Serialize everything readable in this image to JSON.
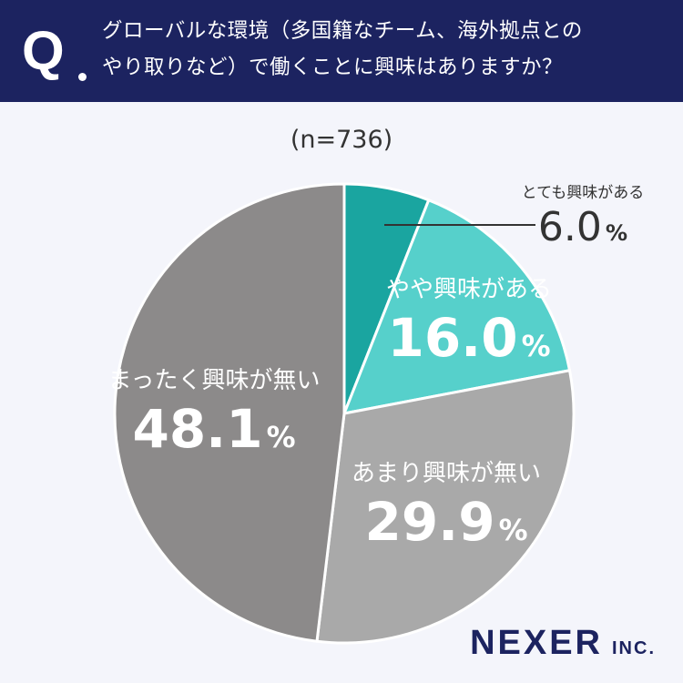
{
  "header": {
    "q_label": "Q",
    "question_line1": "グローバルな環境（多国籍なチーム、海外拠点との",
    "question_line2": "やり取りなど）で働くことに興味はありますか？"
  },
  "sample_size": "(n=736)",
  "chart_data": {
    "type": "pie",
    "start_angle_deg": 0,
    "direction": "clockwise",
    "percent_symbol": "%",
    "slices": [
      {
        "label": "とても興味がある",
        "value": 6.0,
        "display": "6.0",
        "color": "#1aa5a0"
      },
      {
        "label": "やや興味がある",
        "value": 16.0,
        "display": "16.0",
        "color": "#56d0cb"
      },
      {
        "label": "あまり興味が無い",
        "value": 29.9,
        "display": "29.9",
        "color": "#a9a9a9"
      },
      {
        "label": "まったく興味が無い",
        "value": 48.1,
        "display": "48.1",
        "color": "#8c8a8a"
      }
    ]
  },
  "logo": {
    "main": "NEXER",
    "sub": "INC."
  }
}
